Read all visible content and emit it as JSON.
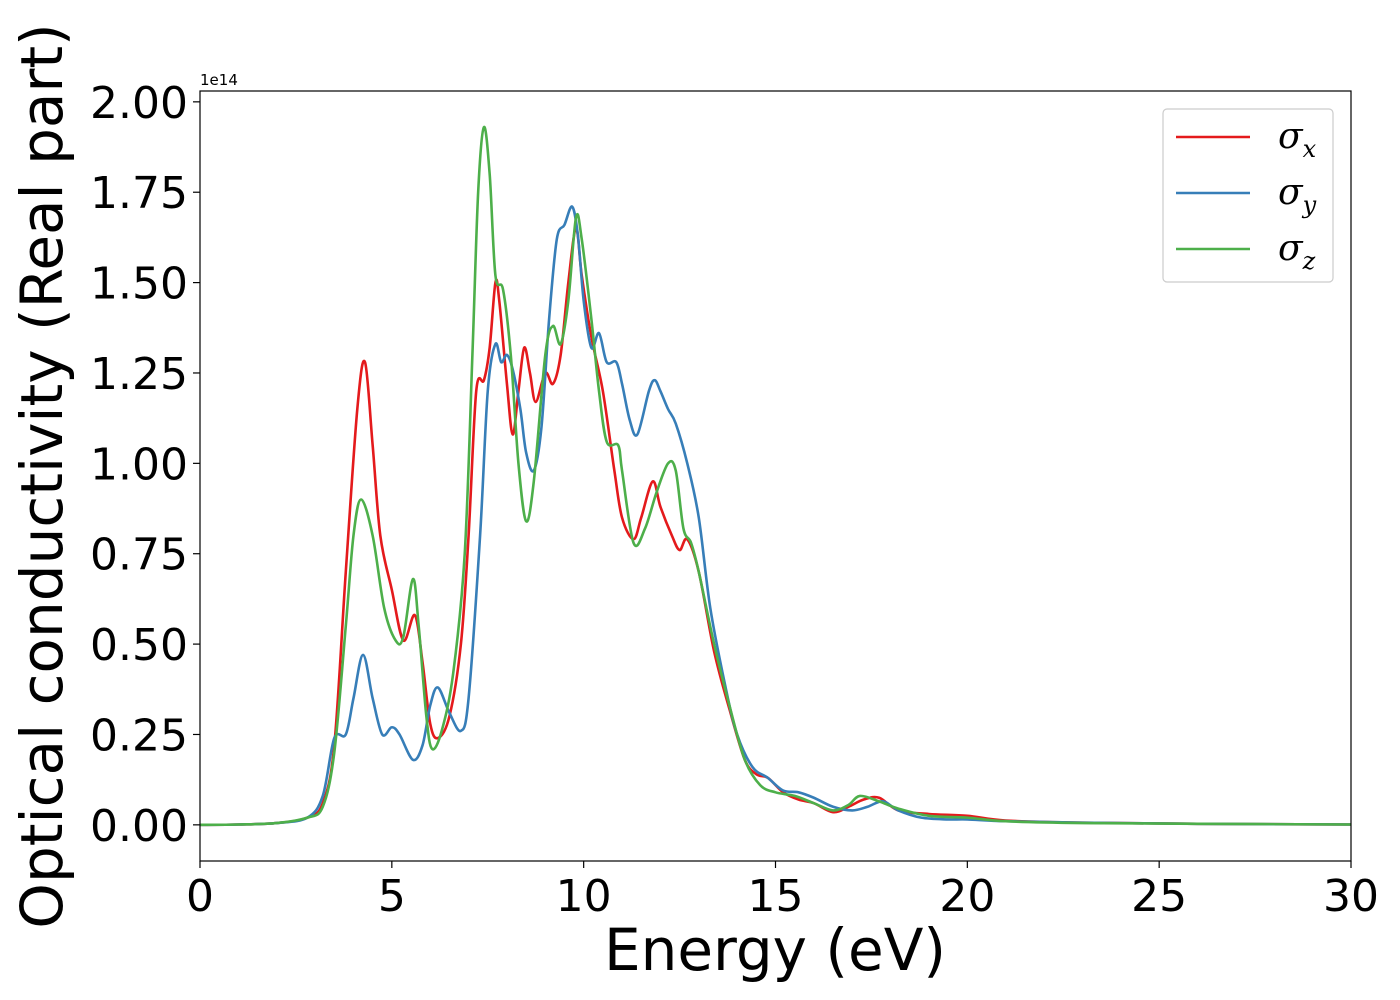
{
  "chart_data": {
    "type": "line",
    "title": "",
    "xlabel": "Energy (eV)",
    "ylabel": "Optical conductivity (Real part)",
    "y_offset_label": "1e14",
    "xlim": [
      0,
      30
    ],
    "ylim": [
      -0.1,
      2.03
    ],
    "xticks": [
      0,
      5,
      10,
      15,
      20,
      25,
      30
    ],
    "xtick_labels": [
      "0",
      "5",
      "10",
      "15",
      "20",
      "25",
      "30"
    ],
    "yticks": [
      0.0,
      0.25,
      0.5,
      0.75,
      1.0,
      1.25,
      1.5,
      1.75,
      2.0
    ],
    "ytick_labels": [
      "0.00",
      "0.25",
      "0.50",
      "0.75",
      "1.00",
      "1.25",
      "1.50",
      "1.75",
      "2.00"
    ],
    "grid": false,
    "legend_position": "top-right",
    "series": [
      {
        "name": "σ",
        "subscript": "x",
        "color": "#e41a1c",
        "points": [
          [
            0,
            0
          ],
          [
            1,
            0.001
          ],
          [
            2,
            0.005
          ],
          [
            2.8,
            0.02
          ],
          [
            3.2,
            0.06
          ],
          [
            3.5,
            0.22
          ],
          [
            3.8,
            0.7
          ],
          [
            4.1,
            1.15
          ],
          [
            4.3,
            1.28
          ],
          [
            4.5,
            1.05
          ],
          [
            4.7,
            0.8
          ],
          [
            5.0,
            0.65
          ],
          [
            5.3,
            0.51
          ],
          [
            5.6,
            0.58
          ],
          [
            5.8,
            0.45
          ],
          [
            6.0,
            0.28
          ],
          [
            6.2,
            0.24
          ],
          [
            6.5,
            0.3
          ],
          [
            6.8,
            0.5
          ],
          [
            7.0,
            0.8
          ],
          [
            7.2,
            1.2
          ],
          [
            7.4,
            1.23
          ],
          [
            7.55,
            1.32
          ],
          [
            7.7,
            1.5
          ],
          [
            7.8,
            1.45
          ],
          [
            8.0,
            1.22
          ],
          [
            8.15,
            1.08
          ],
          [
            8.3,
            1.2
          ],
          [
            8.45,
            1.32
          ],
          [
            8.6,
            1.25
          ],
          [
            8.75,
            1.17
          ],
          [
            9.0,
            1.25
          ],
          [
            9.2,
            1.22
          ],
          [
            9.4,
            1.3
          ],
          [
            9.6,
            1.5
          ],
          [
            9.8,
            1.65
          ],
          [
            9.95,
            1.52
          ],
          [
            10.2,
            1.35
          ],
          [
            10.5,
            1.2
          ],
          [
            10.8,
            0.98
          ],
          [
            11.0,
            0.85
          ],
          [
            11.3,
            0.79
          ],
          [
            11.5,
            0.85
          ],
          [
            11.8,
            0.95
          ],
          [
            12.0,
            0.88
          ],
          [
            12.3,
            0.8
          ],
          [
            12.5,
            0.76
          ],
          [
            12.7,
            0.79
          ],
          [
            13.0,
            0.7
          ],
          [
            13.4,
            0.48
          ],
          [
            13.8,
            0.32
          ],
          [
            14.2,
            0.18
          ],
          [
            14.5,
            0.14
          ],
          [
            14.8,
            0.13
          ],
          [
            15.2,
            0.09
          ],
          [
            15.6,
            0.07
          ],
          [
            16.0,
            0.06
          ],
          [
            16.5,
            0.035
          ],
          [
            16.9,
            0.05
          ],
          [
            17.3,
            0.07
          ],
          [
            17.7,
            0.075
          ],
          [
            18.2,
            0.04
          ],
          [
            19.0,
            0.03
          ],
          [
            20.0,
            0.025
          ],
          [
            21.0,
            0.012
          ],
          [
            23.0,
            0.006
          ],
          [
            26.0,
            0.003
          ],
          [
            30.0,
            0.001
          ]
        ]
      },
      {
        "name": "σ",
        "subscript": "y",
        "color": "#377eb8",
        "points": [
          [
            0,
            0
          ],
          [
            1,
            0.001
          ],
          [
            2,
            0.005
          ],
          [
            2.8,
            0.02
          ],
          [
            3.2,
            0.08
          ],
          [
            3.5,
            0.24
          ],
          [
            3.8,
            0.25
          ],
          [
            4.0,
            0.35
          ],
          [
            4.25,
            0.47
          ],
          [
            4.5,
            0.35
          ],
          [
            4.75,
            0.25
          ],
          [
            5.0,
            0.27
          ],
          [
            5.2,
            0.25
          ],
          [
            5.55,
            0.18
          ],
          [
            5.8,
            0.22
          ],
          [
            6.0,
            0.33
          ],
          [
            6.2,
            0.38
          ],
          [
            6.5,
            0.31
          ],
          [
            6.8,
            0.26
          ],
          [
            7.0,
            0.35
          ],
          [
            7.3,
            0.8
          ],
          [
            7.5,
            1.2
          ],
          [
            7.7,
            1.33
          ],
          [
            7.85,
            1.28
          ],
          [
            8.0,
            1.3
          ],
          [
            8.15,
            1.26
          ],
          [
            8.35,
            1.15
          ],
          [
            8.5,
            1.03
          ],
          [
            8.7,
            0.98
          ],
          [
            8.9,
            1.1
          ],
          [
            9.1,
            1.4
          ],
          [
            9.3,
            1.62
          ],
          [
            9.5,
            1.66
          ],
          [
            9.7,
            1.71
          ],
          [
            9.85,
            1.63
          ],
          [
            10.0,
            1.45
          ],
          [
            10.2,
            1.32
          ],
          [
            10.4,
            1.36
          ],
          [
            10.6,
            1.28
          ],
          [
            10.85,
            1.28
          ],
          [
            11.0,
            1.22
          ],
          [
            11.2,
            1.12
          ],
          [
            11.4,
            1.08
          ],
          [
            11.7,
            1.2
          ],
          [
            11.85,
            1.23
          ],
          [
            12.0,
            1.2
          ],
          [
            12.2,
            1.15
          ],
          [
            12.4,
            1.11
          ],
          [
            12.7,
            1.0
          ],
          [
            13.0,
            0.85
          ],
          [
            13.3,
            0.6
          ],
          [
            13.7,
            0.38
          ],
          [
            14.0,
            0.25
          ],
          [
            14.4,
            0.16
          ],
          [
            14.8,
            0.13
          ],
          [
            15.2,
            0.095
          ],
          [
            15.6,
            0.09
          ],
          [
            16.0,
            0.075
          ],
          [
            16.5,
            0.05
          ],
          [
            17.0,
            0.04
          ],
          [
            17.4,
            0.05
          ],
          [
            17.8,
            0.065
          ],
          [
            18.2,
            0.04
          ],
          [
            18.8,
            0.02
          ],
          [
            19.5,
            0.015
          ],
          [
            20.0,
            0.015
          ],
          [
            21.0,
            0.01
          ],
          [
            23.0,
            0.006
          ],
          [
            26.0,
            0.003
          ],
          [
            30.0,
            0.001
          ]
        ]
      },
      {
        "name": "σ",
        "subscript": "z",
        "color": "#4daf4a",
        "points": [
          [
            0,
            0
          ],
          [
            1,
            0.001
          ],
          [
            2,
            0.005
          ],
          [
            2.8,
            0.02
          ],
          [
            3.2,
            0.05
          ],
          [
            3.5,
            0.2
          ],
          [
            3.8,
            0.55
          ],
          [
            4.0,
            0.8
          ],
          [
            4.2,
            0.9
          ],
          [
            4.5,
            0.8
          ],
          [
            4.8,
            0.6
          ],
          [
            5.1,
            0.51
          ],
          [
            5.3,
            0.52
          ],
          [
            5.55,
            0.68
          ],
          [
            5.7,
            0.55
          ],
          [
            5.9,
            0.3
          ],
          [
            6.05,
            0.21
          ],
          [
            6.3,
            0.26
          ],
          [
            6.6,
            0.42
          ],
          [
            6.9,
            0.75
          ],
          [
            7.1,
            1.3
          ],
          [
            7.25,
            1.75
          ],
          [
            7.4,
            1.93
          ],
          [
            7.55,
            1.8
          ],
          [
            7.7,
            1.52
          ],
          [
            7.9,
            1.48
          ],
          [
            8.1,
            1.3
          ],
          [
            8.3,
            1.0
          ],
          [
            8.5,
            0.84
          ],
          [
            8.7,
            0.95
          ],
          [
            9.0,
            1.3
          ],
          [
            9.2,
            1.38
          ],
          [
            9.4,
            1.33
          ],
          [
            9.6,
            1.45
          ],
          [
            9.8,
            1.68
          ],
          [
            9.95,
            1.62
          ],
          [
            10.2,
            1.4
          ],
          [
            10.4,
            1.2
          ],
          [
            10.6,
            1.06
          ],
          [
            10.9,
            1.05
          ],
          [
            11.0,
            0.98
          ],
          [
            11.3,
            0.78
          ],
          [
            11.6,
            0.82
          ],
          [
            11.9,
            0.92
          ],
          [
            12.2,
            1.0
          ],
          [
            12.4,
            0.98
          ],
          [
            12.6,
            0.82
          ],
          [
            12.8,
            0.78
          ],
          [
            13.0,
            0.7
          ],
          [
            13.4,
            0.5
          ],
          [
            13.8,
            0.33
          ],
          [
            14.2,
            0.18
          ],
          [
            14.6,
            0.11
          ],
          [
            15.0,
            0.09
          ],
          [
            15.5,
            0.08
          ],
          [
            16.0,
            0.06
          ],
          [
            16.5,
            0.04
          ],
          [
            16.9,
            0.055
          ],
          [
            17.2,
            0.08
          ],
          [
            17.7,
            0.065
          ],
          [
            18.2,
            0.045
          ],
          [
            19.0,
            0.025
          ],
          [
            20.0,
            0.02
          ],
          [
            21.0,
            0.01
          ],
          [
            23.0,
            0.005
          ],
          [
            26.0,
            0.003
          ],
          [
            30.0,
            0.001
          ]
        ]
      }
    ]
  }
}
